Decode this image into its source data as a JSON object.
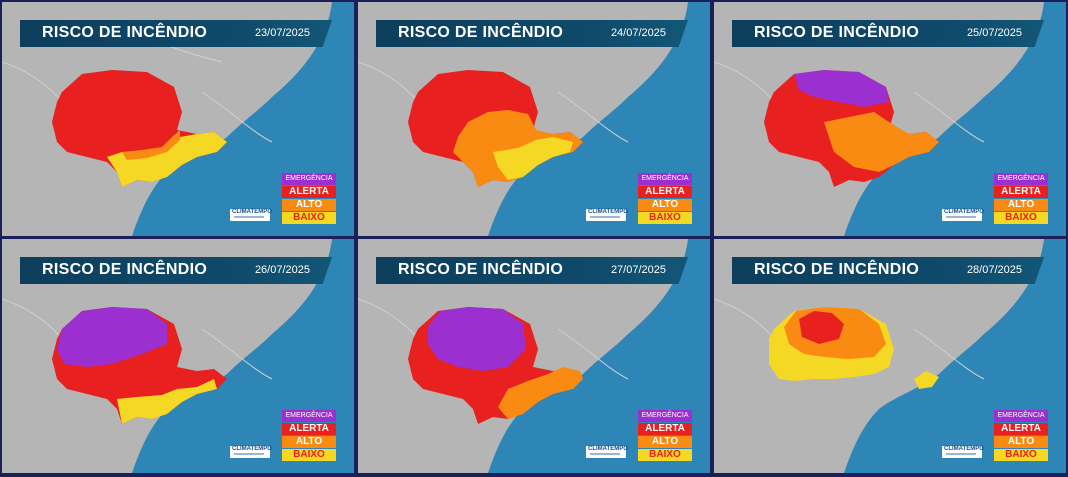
{
  "panels": [
    {
      "title": "RISCO DE INCÊNDIO",
      "date": "23/07/2025",
      "severity": "alerta-dominant"
    },
    {
      "title": "RISCO DE INCÊNDIO",
      "date": "24/07/2025",
      "severity": "alerta-dominant"
    },
    {
      "title": "RISCO DE INCÊNDIO",
      "date": "25/07/2025",
      "severity": "emergencia-north"
    },
    {
      "title": "RISCO DE INCÊNDIO",
      "date": "26/07/2025",
      "severity": "emergencia-dominant"
    },
    {
      "title": "RISCO DE INCÊNDIO",
      "date": "27/07/2025",
      "severity": "emergencia-dominant"
    },
    {
      "title": "RISCO DE INCÊNDIO",
      "date": "28/07/2025",
      "severity": "alto-dominant"
    }
  ],
  "legend": [
    {
      "label": "EMERGÊNCIA",
      "color": "#9b2fd0",
      "text_color": "#ffffff"
    },
    {
      "label": "ALERTA",
      "color": "#e8201f",
      "text_color": "#ffffff"
    },
    {
      "label": "ALTO",
      "color": "#f98a12",
      "text_color": "#ffffff"
    },
    {
      "label": "BAIXO",
      "color": "#f5d823",
      "text_color": "#e8201f"
    }
  ],
  "logo_text": "CLIMATEMPO",
  "colors": {
    "ocean": "#2e86b6",
    "land": "#b5b5b5",
    "emergencia": "#9b2fd0",
    "alerta": "#e8201f",
    "alto": "#f98a12",
    "baixo": "#f5d823"
  }
}
